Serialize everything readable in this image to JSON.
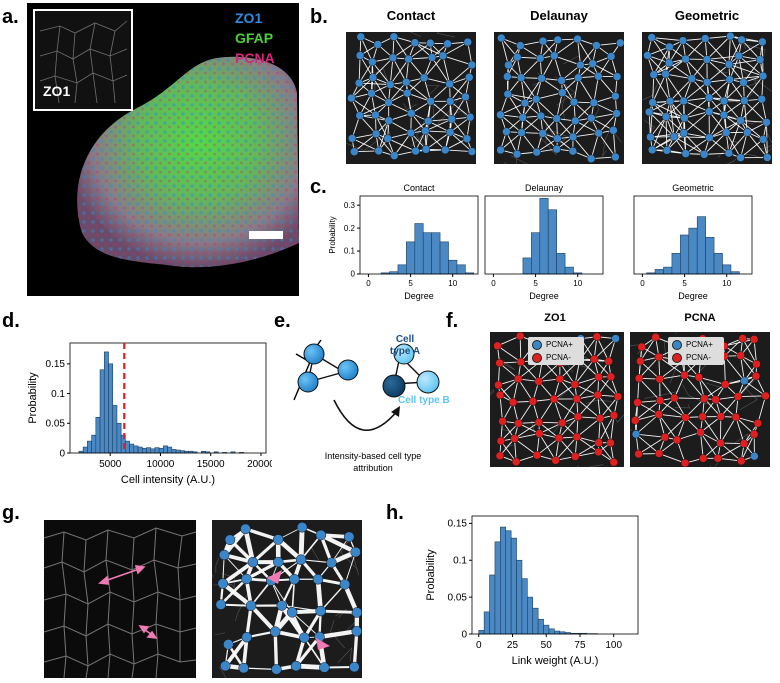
{
  "letters": {
    "a": "a.",
    "b": "b.",
    "c": "c.",
    "d": "d.",
    "e": "e.",
    "f": "f.",
    "g": "g.",
    "h": "h."
  },
  "panel_a": {
    "inset_label": "ZO1",
    "legend": [
      {
        "label": "ZO1",
        "color": "#2f8be0"
      },
      {
        "label": "GFAP",
        "color": "#4bd13a"
      },
      {
        "label": "PCNA",
        "color": "#d6287a"
      }
    ]
  },
  "panel_b": {
    "titles": [
      "Contact",
      "Delaunay",
      "Geometric"
    ]
  },
  "panel_e": {
    "cell_type_a": "Cell\ntype A",
    "cell_type_b": "Cell type B",
    "caption": "Intensity-based cell type\nattribution"
  },
  "panel_f": {
    "titles": [
      "ZO1",
      "PCNA"
    ],
    "legend_pos": "PCNA+",
    "legend_neg": "PCNA-"
  },
  "colors": {
    "bar": "#4a89c4",
    "node": "#3a86c8",
    "red_node": "#e02020",
    "cutoff": "#e02020",
    "pink": "#f07ab4"
  },
  "chart_data": [
    {
      "id": "c-contact",
      "type": "bar",
      "title": "Contact",
      "xlabel": "Degree",
      "ylabel": "Probability",
      "xlim": [
        -1,
        13
      ],
      "ylim": [
        0,
        0.34
      ],
      "xticks": [
        0,
        5,
        10
      ],
      "yticks": [
        0,
        0.1,
        0.2,
        0.3
      ],
      "bins": [
        {
          "x": 2,
          "v": 0.005
        },
        {
          "x": 3,
          "v": 0.01
        },
        {
          "x": 4,
          "v": 0.04
        },
        {
          "x": 5,
          "v": 0.14
        },
        {
          "x": 6,
          "v": 0.22
        },
        {
          "x": 7,
          "v": 0.18
        },
        {
          "x": 8,
          "v": 0.18
        },
        {
          "x": 9,
          "v": 0.14
        },
        {
          "x": 10,
          "v": 0.06
        },
        {
          "x": 11,
          "v": 0.04
        },
        {
          "x": 12,
          "v": 0.005
        }
      ]
    },
    {
      "id": "c-delaunay",
      "type": "bar",
      "title": "Delaunay",
      "xlabel": "Degree",
      "xlim": [
        -1,
        13
      ],
      "ylim": [
        0,
        0.34
      ],
      "xticks": [
        0,
        5,
        10
      ],
      "bins": [
        {
          "x": 4,
          "v": 0.07
        },
        {
          "x": 5,
          "v": 0.18
        },
        {
          "x": 6,
          "v": 0.33
        },
        {
          "x": 7,
          "v": 0.28
        },
        {
          "x": 8,
          "v": 0.09
        },
        {
          "x": 9,
          "v": 0.03
        },
        {
          "x": 10,
          "v": 0.005
        }
      ]
    },
    {
      "id": "c-geometric",
      "type": "bar",
      "title": "Geometric",
      "xlabel": "Degree",
      "xlim": [
        -1,
        13
      ],
      "ylim": [
        0,
        0.34
      ],
      "xticks": [
        0,
        5,
        10
      ],
      "bins": [
        {
          "x": 1,
          "v": 0.005
        },
        {
          "x": 2,
          "v": 0.02
        },
        {
          "x": 3,
          "v": 0.03
        },
        {
          "x": 4,
          "v": 0.09
        },
        {
          "x": 5,
          "v": 0.17
        },
        {
          "x": 6,
          "v": 0.2
        },
        {
          "x": 7,
          "v": 0.25
        },
        {
          "x": 8,
          "v": 0.16
        },
        {
          "x": 9,
          "v": 0.09
        },
        {
          "x": 10,
          "v": 0.04
        },
        {
          "x": 11,
          "v": 0.01
        }
      ]
    },
    {
      "id": "d-intensity",
      "type": "bar",
      "xlabel": "Cell intensity (A.U.)",
      "ylabel": "Probability",
      "xlim": [
        1000,
        20500
      ],
      "ylim": [
        0,
        0.185
      ],
      "xticks": [
        5000,
        10000,
        15000,
        20000
      ],
      "yticks": [
        0,
        0.05,
        0.1,
        0.15
      ],
      "cutoff": 6400,
      "binwidth": 420,
      "bins": [
        [
          2100,
          0.003
        ],
        [
          2520,
          0.01
        ],
        [
          2940,
          0.02
        ],
        [
          3360,
          0.03
        ],
        [
          3780,
          0.06
        ],
        [
          4200,
          0.14
        ],
        [
          4620,
          0.17
        ],
        [
          5040,
          0.15
        ],
        [
          5460,
          0.08
        ],
        [
          5880,
          0.05
        ],
        [
          6300,
          0.03
        ],
        [
          6720,
          0.02
        ],
        [
          7140,
          0.015
        ],
        [
          7560,
          0.012
        ],
        [
          7980,
          0.01
        ],
        [
          8400,
          0.008
        ],
        [
          8820,
          0.009
        ],
        [
          9240,
          0.007
        ],
        [
          9660,
          0.009
        ],
        [
          10080,
          0.008
        ],
        [
          10500,
          0.012
        ],
        [
          10920,
          0.01
        ],
        [
          11340,
          0.006
        ],
        [
          11760,
          0.005
        ],
        [
          12180,
          0.004
        ],
        [
          12600,
          0.003
        ],
        [
          13020,
          0.003
        ],
        [
          13440,
          0.002
        ],
        [
          14280,
          0.003
        ],
        [
          14700,
          0.002
        ],
        [
          15540,
          0.002
        ],
        [
          16380,
          0.001
        ],
        [
          17220,
          0.002
        ],
        [
          18060,
          0.001
        ]
      ]
    },
    {
      "id": "h-weight",
      "type": "bar",
      "xlabel": "Link weight (A.U.)",
      "ylabel": "Probability",
      "xlim": [
        -5,
        118
      ],
      "ylim": [
        0,
        0.16
      ],
      "xticks": [
        0,
        25,
        50,
        75,
        100
      ],
      "yticks": [
        0,
        0.05,
        0.1,
        0.15
      ],
      "binwidth": 4,
      "bins": [
        [
          2,
          0.005
        ],
        [
          6,
          0.03
        ],
        [
          10,
          0.08
        ],
        [
          14,
          0.125
        ],
        [
          18,
          0.145
        ],
        [
          22,
          0.14
        ],
        [
          26,
          0.13
        ],
        [
          30,
          0.1
        ],
        [
          34,
          0.075
        ],
        [
          38,
          0.05
        ],
        [
          42,
          0.035
        ],
        [
          46,
          0.02
        ],
        [
          50,
          0.012
        ],
        [
          54,
          0.007
        ],
        [
          58,
          0.004
        ],
        [
          62,
          0.003
        ],
        [
          66,
          0.002
        ],
        [
          70,
          0.001
        ],
        [
          74,
          0.001
        ],
        [
          78,
          0.001
        ],
        [
          82,
          0.0005
        ],
        [
          86,
          0.0005
        ]
      ]
    }
  ]
}
